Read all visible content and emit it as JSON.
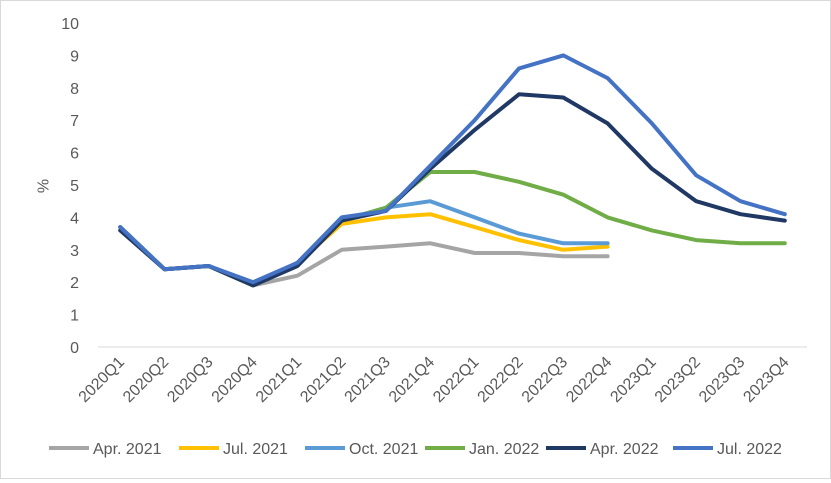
{
  "chart_data": {
    "type": "line",
    "title": "",
    "xlabel": "",
    "ylabel": "%",
    "ylim": [
      0,
      10
    ],
    "yticks": [
      0,
      1,
      2,
      3,
      4,
      5,
      6,
      7,
      8,
      9,
      10
    ],
    "grid": false,
    "legend_position": "bottom",
    "categories": [
      "2020Q1",
      "2020Q2",
      "2020Q3",
      "2020Q4",
      "2021Q1",
      "2021Q2",
      "2021Q3",
      "2021Q4",
      "2022Q1",
      "2022Q2",
      "2022Q3",
      "2022Q4",
      "2023Q1",
      "2023Q2",
      "2023Q3",
      "2023Q4"
    ],
    "series": [
      {
        "name": "Apr. 2021",
        "color": "#a5a5a5",
        "values": [
          3.7,
          2.4,
          2.5,
          1.9,
          2.2,
          3.0,
          3.1,
          3.2,
          2.9,
          2.9,
          2.8,
          2.8,
          null,
          null,
          null,
          null
        ]
      },
      {
        "name": "Jul. 2021",
        "color": "#ffc000",
        "values": [
          3.7,
          2.4,
          2.5,
          1.9,
          2.6,
          3.8,
          4.0,
          4.1,
          3.7,
          3.3,
          3.0,
          3.1,
          null,
          null,
          null,
          null
        ]
      },
      {
        "name": "Oct. 2021",
        "color": "#5b9bd5",
        "values": [
          3.7,
          2.4,
          2.5,
          1.9,
          2.6,
          3.9,
          4.3,
          4.5,
          4.0,
          3.5,
          3.2,
          3.2,
          null,
          null,
          null,
          null
        ]
      },
      {
        "name": "Jan. 2022",
        "color": "#70ad47",
        "values": [
          3.7,
          2.4,
          2.5,
          1.9,
          2.6,
          3.9,
          4.3,
          5.4,
          5.4,
          5.1,
          4.7,
          4.0,
          3.6,
          3.3,
          3.2,
          3.2
        ]
      },
      {
        "name": "Apr. 2022",
        "color": "#203864",
        "values": [
          3.6,
          2.4,
          2.5,
          1.9,
          2.5,
          3.9,
          4.2,
          5.5,
          6.7,
          7.8,
          7.7,
          6.9,
          5.5,
          4.5,
          4.1,
          3.9
        ]
      },
      {
        "name": "Jul. 2022",
        "color": "#4472c4",
        "values": [
          3.7,
          2.4,
          2.5,
          2.0,
          2.6,
          4.0,
          4.2,
          5.6,
          7.0,
          8.6,
          9.0,
          8.3,
          6.9,
          5.3,
          4.5,
          4.1
        ]
      }
    ]
  }
}
